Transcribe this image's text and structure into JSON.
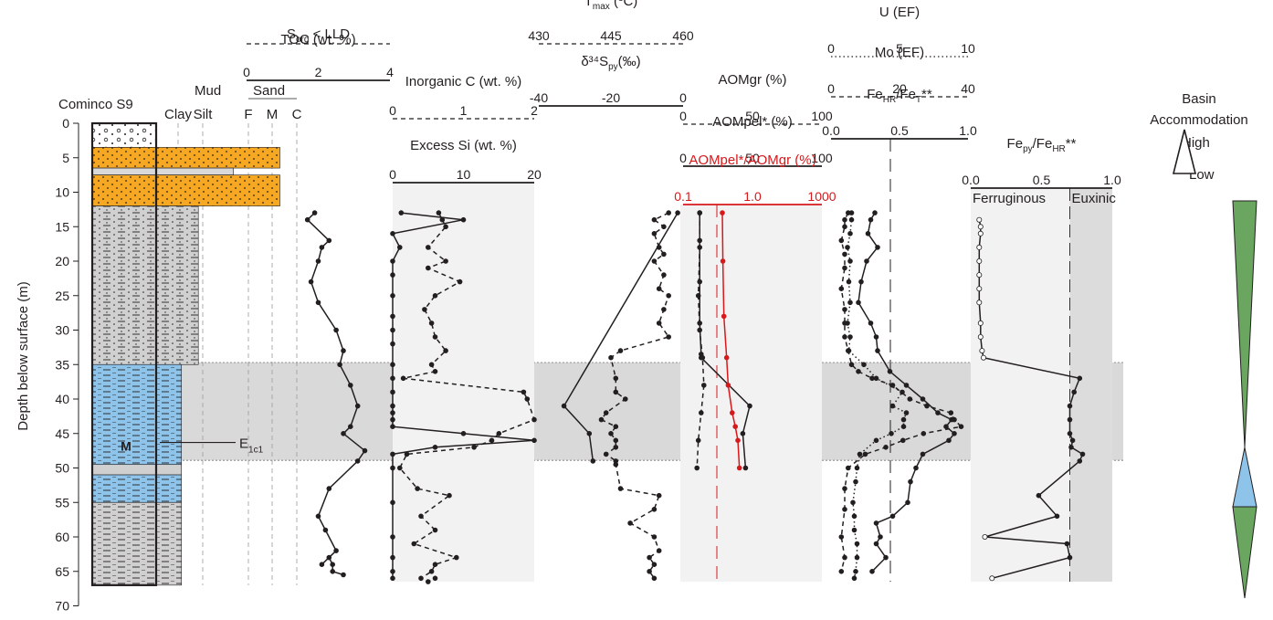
{
  "chart_data": {
    "type": "line",
    "depth_axis": {
      "label": "Depth below surface (m)",
      "range": [
        0,
        70
      ],
      "ticks": [
        "0",
        "5",
        "10",
        "15",
        "20",
        "25",
        "30",
        "35",
        "40",
        "45",
        "50",
        "55",
        "60",
        "65",
        "70"
      ]
    },
    "core": {
      "name": "Cominco S9",
      "grain_header": "Mud",
      "sand_header": "Sand",
      "grain_classes": [
        "Clay",
        "Silt",
        "F",
        "M",
        "C"
      ],
      "marker_label": "M",
      "annotation": {
        "text": "E",
        "sub": "1c1",
        "depth": 46.3
      },
      "units": [
        {
          "top": 0,
          "bottom": 3.5,
          "color": "#ffffff",
          "pattern": "gravel",
          "grain": 0
        },
        {
          "top": 3.5,
          "bottom": 6.5,
          "color": "#f7a823",
          "pattern": "sand",
          "grain": 0.88
        },
        {
          "top": 6.5,
          "bottom": 7.5,
          "color": "#d9d9d9",
          "pattern": "none",
          "grain": 0.55
        },
        {
          "top": 7.5,
          "bottom": 12,
          "color": "#f7a823",
          "pattern": "sand",
          "grain": 0.88
        },
        {
          "top": 12,
          "bottom": 35,
          "color": "#d0d0d0",
          "pattern": "silt",
          "grain": 0.3
        },
        {
          "top": 35,
          "bottom": 49.5,
          "color": "#8ec4ea",
          "pattern": "mud",
          "grain": 0.18
        },
        {
          "top": 49.5,
          "bottom": 51,
          "color": "#d0d0d0",
          "pattern": "none",
          "grain": 0.18
        },
        {
          "top": 51,
          "bottom": 55,
          "color": "#8ec4ea",
          "pattern": "mud",
          "grain": 0.18
        },
        {
          "top": 55,
          "bottom": 67,
          "color": "#d0d0d0",
          "pattern": "mud",
          "grain": 0.18
        }
      ]
    },
    "shaded_interval": [
      34.7,
      48.9
    ],
    "panels": [
      {
        "id": "toc",
        "axes": [
          {
            "label_main": "S",
            "label_sub": "org",
            "label_suffix": " < LLD",
            "range": null,
            "ticks": [],
            "style": "dashed"
          },
          {
            "label_main": "TOC (wt. %)",
            "label_sub": "",
            "label_suffix": "",
            "range": [
              0,
              4
            ],
            "ticks": [
              "0",
              "2",
              "4"
            ],
            "style": "solid"
          }
        ],
        "series": [
          {
            "name": "TOC",
            "style": "solid",
            "axis": 1,
            "x": [
              1.9,
              1.7,
              2.3,
              2.1,
              2.0,
              1.8,
              2.0,
              2.5,
              2.7,
              2.6,
              2.9,
              3.1,
              2.9,
              2.7,
              3.3,
              3.1,
              2.3,
              2.0,
              2.2,
              2.5,
              2.1,
              2.3,
              2.4,
              2.4,
              2.7
            ],
            "y": [
              13,
              14,
              17,
              18,
              20,
              23,
              26,
              30,
              33,
              35,
              38,
              41,
              44,
              45,
              47.5,
              49,
              53,
              57,
              59,
              62,
              64,
              63,
              64,
              65,
              65.5
            ]
          }
        ]
      },
      {
        "id": "inorg",
        "axes": [
          {
            "label_main": "Inorganic C (wt. %)",
            "label_sub": "",
            "label_suffix": "",
            "range": [
              0,
              2
            ],
            "ticks": [
              "0",
              "1",
              "2"
            ],
            "style": "dashed"
          },
          {
            "label_main": "Excess Si (wt. %)",
            "label_sub": "",
            "label_suffix": "",
            "range": [
              0,
              20
            ],
            "ticks": [
              "0",
              "10",
              "20"
            ],
            "style": "solid"
          }
        ],
        "series": [
          {
            "name": "Excess Si",
            "style": "solid",
            "axis": 1,
            "x": [
              1.2,
              10,
              0,
              1,
              0,
              0,
              0,
              0,
              0,
              0,
              0,
              0,
              0,
              0,
              0,
              0,
              0,
              10,
              20,
              6,
              0,
              0,
              0,
              0,
              0,
              0,
              0
            ],
            "y": [
              13,
              14,
              16,
              18,
              20,
              22,
              25,
              28,
              30,
              32,
              35,
              37,
              39,
              41,
              42,
              43,
              44,
              45,
              46,
              47,
              48,
              50,
              55,
              60,
              63,
              65,
              66
            ]
          },
          {
            "name": "Inorganic C",
            "style": "dashed",
            "axis": 0,
            "x": [
              0.65,
              0.7,
              0.75,
              0.5,
              0.75,
              0.5,
              0.95,
              0.6,
              0.45,
              0.55,
              0.6,
              0.75,
              0.55,
              0.6,
              0.15,
              1.85,
              1.9,
              2.0,
              1.5,
              1.4,
              1.15,
              0.2,
              0.1,
              0.35,
              0.8,
              0.4,
              0.6,
              0.3,
              0.9,
              0.6,
              0.55,
              0.4,
              0.5,
              0.6
            ],
            "y": [
              13,
              14,
              15,
              18,
              20,
              21,
              23,
              25,
              27,
              29,
              31,
              33,
              35,
              36,
              37,
              39,
              40,
              43,
              45,
              46,
              47,
              48,
              50,
              53,
              54,
              57,
              59,
              61,
              63,
              64,
              65,
              66,
              66.5,
              66
            ]
          }
        ]
      },
      {
        "id": "tmax",
        "axes": [
          {
            "label_main": "T",
            "label_sub": "max",
            "label_suffix": " (ºC)",
            "range": [
              430,
              460
            ],
            "ticks": [
              "430",
              "445",
              "460"
            ],
            "style": "dashed"
          },
          {
            "label_main": "δ³⁴S",
            "label_sub": "py",
            "label_suffix": "(‰)",
            "range": [
              -40,
              0
            ],
            "ticks": [
              "-40",
              "-20",
              "0"
            ],
            "style": "solid"
          }
        ],
        "series": [
          {
            "name": "δ34S",
            "style": "solid",
            "axis": 1,
            "x": [
              -1.5,
              -33,
              -26,
              -25
            ],
            "y": [
              13,
              41,
              45,
              49
            ]
          },
          {
            "name": "Tmax",
            "style": "dashed",
            "axis": 0,
            "x": [
              457,
              454,
              456,
              454,
              455,
              456,
              454,
              456,
              455,
              457,
              456,
              455,
              457,
              447,
              445,
              446,
              446,
              448,
              444,
              443,
              446,
              445,
              446,
              446,
              444,
              446,
              446,
              447,
              455,
              454,
              449,
              454,
              455,
              453,
              454,
              453,
              454
            ],
            "y": [
              13,
              14,
              15,
              16,
              18,
              19,
              20,
              22,
              24,
              25,
              27,
              29,
              31,
              33,
              34,
              37,
              39,
              40,
              42,
              43,
              44,
              45,
              46,
              47,
              48,
              49,
              49.5,
              53,
              54,
              56,
              58,
              60,
              62,
              63,
              64,
              65,
              66
            ]
          }
        ]
      },
      {
        "id": "aom",
        "axes": [
          {
            "label_main": "AOMgr (%)",
            "label_sub": "",
            "label_suffix": "",
            "range": [
              0,
              100
            ],
            "ticks": [
              "0",
              "50",
              "100"
            ],
            "style": "dashed"
          },
          {
            "label_main": "AOMpel* (%)",
            "label_sub": "",
            "label_suffix": "",
            "range": [
              0,
              100
            ],
            "ticks": [
              "0",
              "50",
              "100"
            ],
            "style": "solid"
          },
          {
            "label_main": "AOMpel*/AOMgr (%)",
            "label_sub": "",
            "label_suffix": "",
            "range": [
              0.1,
              1000
            ],
            "ticks": [
              "0.1",
              "1.0",
              "1000"
            ],
            "style": "solid",
            "color": "#d7191c"
          }
        ],
        "series": [
          {
            "name": "AOMpel*",
            "style": "solid",
            "axis": 1,
            "x": [
              12,
              12,
              12,
              12,
              13,
              13,
              48,
              43,
              45
            ],
            "y": [
              13,
              17,
              23,
              29,
              33.5,
              34,
              41,
              45,
              50
            ]
          },
          {
            "name": "AOMgr",
            "style": "dashed",
            "axis": 0,
            "x": [
              12,
              12,
              11,
              12,
              14,
              15,
              13,
              11,
              10
            ],
            "y": [
              13,
              18,
              25,
              30,
              34,
              38,
              42,
              46,
              50
            ]
          },
          {
            "name": "AOMpel*/AOMgr",
            "style": "solid",
            "axis": 2,
            "color": "#d7191c",
            "x": [
              1.35,
              1.4,
              1.5,
              1.8,
              2.0,
              2.6,
              3.2,
              3.8,
              4.2
            ],
            "y": [
              13,
              20,
              28,
              34,
              38,
              42,
              44,
              46,
              50
            ]
          }
        ]
      },
      {
        "id": "redox",
        "axes": [
          {
            "label_main": "U (EF)",
            "label_sub": "",
            "label_suffix": "",
            "range": [
              0,
              10
            ],
            "ticks": [
              "0",
              "5",
              "10"
            ],
            "style": "dotted"
          },
          {
            "label_main": "Mo (EF)",
            "label_sub": "",
            "label_suffix": "",
            "range": [
              0,
              40
            ],
            "ticks": [
              "0",
              "20",
              "40"
            ],
            "style": "dashed"
          },
          {
            "label_main": "Fe",
            "label_sub": "HR",
            "label_suffix": "/Fe",
            "label_sub2": "T",
            "label_suffix2": "**",
            "range": [
              0,
              1.0
            ],
            "ticks": [
              "0.0",
              "0.5",
              "1.0"
            ],
            "style": "solid"
          }
        ],
        "series": [
          {
            "name": "FeHR/FeT",
            "style": "solid",
            "axis": 2,
            "x": [
              0.32,
              0.29,
              0.27,
              0.34,
              0.26,
              0.22,
              0.2,
              0.29,
              0.33,
              0.34,
              0.43,
              0.55,
              0.67,
              0.78,
              0.88,
              0.84,
              0.9,
              0.86,
              0.67,
              0.62,
              0.58,
              0.56,
              0.45,
              0.33,
              0.36,
              0.33,
              0.4,
              0.3
            ],
            "y": [
              13,
              14,
              16,
              18,
              20,
              23,
              26,
              29,
              31,
              33,
              36,
              38,
              40,
              42,
              43,
              44,
              45,
              46,
              48,
              50,
              52,
              55,
              57,
              58,
              60,
              61,
              63,
              65
            ]
          },
          {
            "name": "U",
            "style": "dotted",
            "axis": 0,
            "x": [
              1.5,
              1.5,
              1.4,
              1.2,
              1.4,
              1.3,
              1.4,
              1.2,
              1.4,
              1.3,
              2.4,
              3.3,
              5.2,
              4.5,
              5.5,
              5.3,
              5.3,
              4.4,
              3.3,
              2.1,
              1.9,
              1.8,
              1.6,
              1.7,
              1.7,
              1.9,
              1.9,
              1.8,
              1.7
            ],
            "y": [
              13,
              14,
              16,
              18,
              20,
              23,
              26,
              29,
              31,
              33,
              35,
              37,
              39,
              41,
              42,
              43,
              44,
              45,
              46,
              48,
              50,
              52,
              55,
              57,
              59,
              61,
              63,
              65,
              66
            ]
          },
          {
            "name": "Mo",
            "style": "dashed",
            "axis": 1,
            "x": [
              5,
              4,
              4,
              3,
              4,
              4,
              3,
              4,
              4,
              4,
              5,
              6,
              8,
              12,
              18,
              23,
              28,
              35,
              36,
              38,
              27,
              21,
              16,
              10,
              5,
              4,
              4,
              3,
              4,
              3
            ],
            "y": [
              13,
              14,
              15,
              17,
              19,
              21,
              24,
              27,
              29,
              31,
              33,
              35,
              36,
              37,
              38,
              40,
              41,
              42,
              43,
              44,
              45,
              46,
              47,
              48,
              50,
              53,
              56,
              60,
              63,
              65
            ]
          }
        ]
      },
      {
        "id": "fepy",
        "axes": [
          {
            "label_main": "Fe",
            "label_sub": "py",
            "label_suffix": "/Fe",
            "label_sub2": "HR",
            "label_suffix2": "**",
            "range": [
              0,
              1.0
            ],
            "ticks": [
              "0.0",
              "0.5",
              "1.0"
            ],
            "style": "solid"
          }
        ],
        "zones": [
          "Ferruginous",
          "Euxinic"
        ],
        "threshold": 0.7,
        "series": [
          {
            "name": "Fepy/FeHR",
            "style": "solid",
            "axis": 0,
            "x": [
              0.06,
              0.07,
              0.07,
              0.06,
              0.06,
              0.06,
              0.06,
              0.06,
              0.07,
              0.07,
              0.08,
              0.09,
              0.77,
              0.73,
              0.7,
              0.7,
              0.7,
              0.72,
              0.71,
              0.79,
              0.77,
              0.48,
              0.61,
              0.1,
              0.68,
              0.7,
              0.15
            ],
            "y": [
              14,
              15,
              16,
              18,
              20,
              22,
              24,
              26,
              29,
              31,
              33,
              34,
              37,
              39,
              41,
              43,
              45,
              46,
              47,
              48,
              49,
              54,
              57,
              60,
              61,
              63,
              66
            ]
          }
        ]
      }
    ],
    "accommodation": {
      "title_line1": "Basin",
      "title_line2": "Accommodation",
      "high_label": "High",
      "low_label": "Low",
      "colors": {
        "green": "#6aa660",
        "blue": "#8ec4ea"
      }
    }
  }
}
